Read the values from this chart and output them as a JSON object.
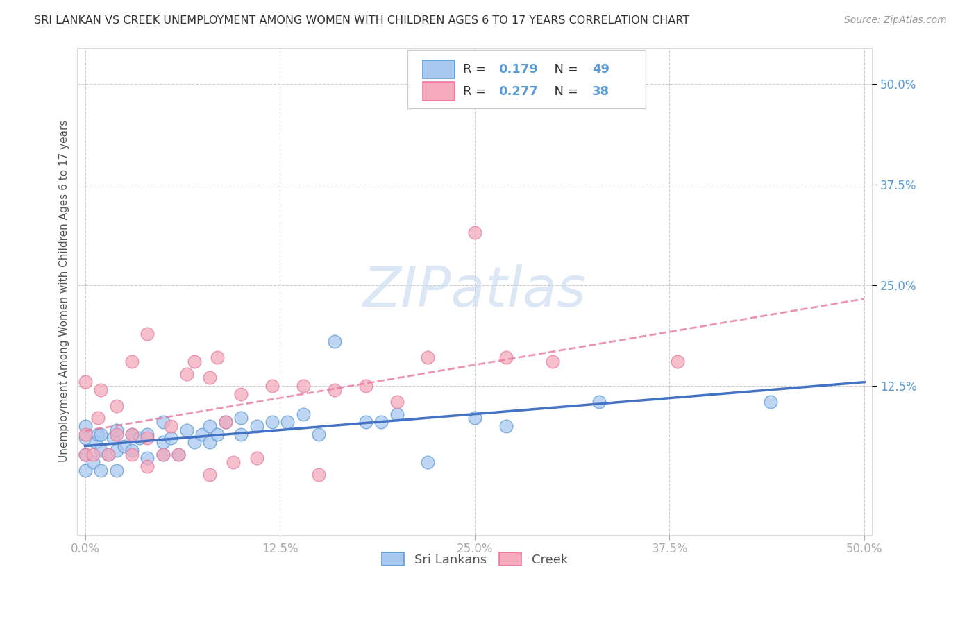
{
  "title": "SRI LANKAN VS CREEK UNEMPLOYMENT AMONG WOMEN WITH CHILDREN AGES 6 TO 17 YEARS CORRELATION CHART",
  "source": "Source: ZipAtlas.com",
  "ylabel": "Unemployment Among Women with Children Ages 6 to 17 years",
  "xlim": [
    -0.005,
    0.505
  ],
  "ylim": [
    -0.06,
    0.545
  ],
  "xticks": [
    0.0,
    0.125,
    0.25,
    0.375,
    0.5
  ],
  "yticks": [
    0.0,
    0.125,
    0.25,
    0.375,
    0.5
  ],
  "right_ytick_labels": [
    "12.5%",
    "25.0%",
    "37.5%",
    "50.0%"
  ],
  "right_yticks": [
    0.125,
    0.25,
    0.375,
    0.5
  ],
  "xticklabels": [
    "0.0%",
    "12.5%",
    "25.0%",
    "37.5%",
    "50.0%"
  ],
  "legend_labels": [
    "Sri Lankans",
    "Creek"
  ],
  "sri_R": "0.179",
  "sri_N": "49",
  "creek_R": "0.277",
  "creek_N": "38",
  "sri_color": "#A8C8F0",
  "creek_color": "#F4AABB",
  "sri_edge_color": "#5B9BD5",
  "creek_edge_color": "#E879A0",
  "sri_line_color": "#4472C4",
  "creek_line_color": "#E879A0",
  "tick_label_color": "#5B9BD5",
  "watermark": "ZIPatlas",
  "background_color": "#FFFFFF",
  "sri_x": [
    0.0,
    0.0,
    0.0,
    0.0,
    0.005,
    0.007,
    0.008,
    0.01,
    0.01,
    0.01,
    0.015,
    0.018,
    0.02,
    0.02,
    0.02,
    0.025,
    0.03,
    0.03,
    0.035,
    0.04,
    0.04,
    0.05,
    0.05,
    0.05,
    0.055,
    0.06,
    0.065,
    0.07,
    0.075,
    0.08,
    0.08,
    0.085,
    0.09,
    0.1,
    0.1,
    0.11,
    0.12,
    0.13,
    0.14,
    0.15,
    0.16,
    0.18,
    0.19,
    0.2,
    0.22,
    0.25,
    0.27,
    0.33,
    0.44
  ],
  "sri_y": [
    0.02,
    0.04,
    0.06,
    0.075,
    0.03,
    0.055,
    0.065,
    0.02,
    0.045,
    0.065,
    0.04,
    0.06,
    0.02,
    0.045,
    0.07,
    0.05,
    0.045,
    0.065,
    0.06,
    0.035,
    0.065,
    0.04,
    0.055,
    0.08,
    0.06,
    0.04,
    0.07,
    0.055,
    0.065,
    0.055,
    0.075,
    0.065,
    0.08,
    0.065,
    0.085,
    0.075,
    0.08,
    0.08,
    0.09,
    0.065,
    0.18,
    0.08,
    0.08,
    0.09,
    0.03,
    0.085,
    0.075,
    0.105,
    0.105
  ],
  "creek_x": [
    0.0,
    0.0,
    0.0,
    0.005,
    0.008,
    0.01,
    0.015,
    0.02,
    0.02,
    0.03,
    0.03,
    0.03,
    0.04,
    0.04,
    0.04,
    0.05,
    0.055,
    0.06,
    0.065,
    0.07,
    0.08,
    0.08,
    0.085,
    0.09,
    0.095,
    0.1,
    0.11,
    0.12,
    0.14,
    0.15,
    0.16,
    0.18,
    0.2,
    0.22,
    0.25,
    0.27,
    0.3,
    0.38
  ],
  "creek_y": [
    0.04,
    0.065,
    0.13,
    0.04,
    0.085,
    0.12,
    0.04,
    0.065,
    0.1,
    0.04,
    0.065,
    0.155,
    0.025,
    0.06,
    0.19,
    0.04,
    0.075,
    0.04,
    0.14,
    0.155,
    0.015,
    0.135,
    0.16,
    0.08,
    0.03,
    0.115,
    0.035,
    0.125,
    0.125,
    0.015,
    0.12,
    0.125,
    0.105,
    0.16,
    0.315,
    0.16,
    0.155,
    0.155
  ]
}
